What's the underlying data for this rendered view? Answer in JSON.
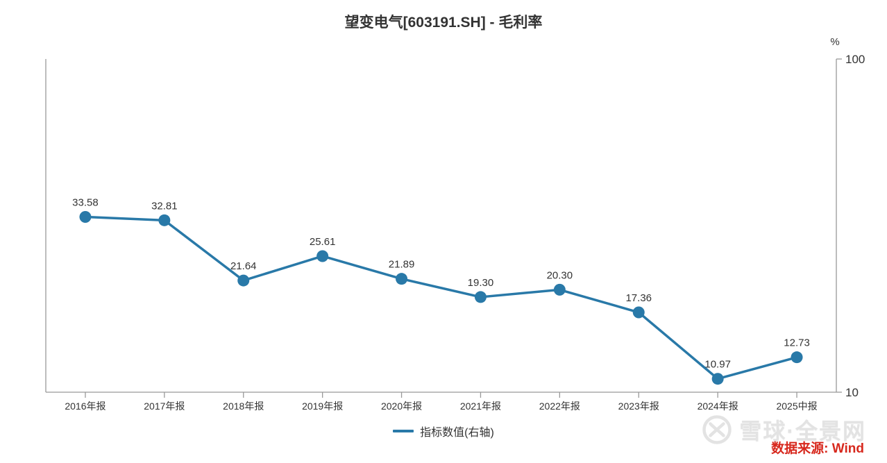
{
  "chart_data": {
    "type": "line",
    "title": "望变电气[603191.SH] - 毛利率",
    "categories": [
      "2016年报",
      "2017年报",
      "2018年报",
      "2019年报",
      "2020年报",
      "2021年报",
      "2022年报",
      "2023年报",
      "2024年报",
      "2025中报"
    ],
    "series": [
      {
        "name": "指标数值(右轴)",
        "values": [
          33.58,
          32.81,
          21.64,
          25.61,
          21.89,
          19.3,
          20.3,
          17.36,
          10.97,
          12.73
        ],
        "point_labels": [
          "33.58",
          "32.81",
          "21.64",
          "25.61",
          "21.89",
          "19.30",
          "20.30",
          "17.36",
          "10.97",
          "12.73"
        ]
      }
    ],
    "xlabel": "",
    "ylabel": "%",
    "y_axis": {
      "side": "right",
      "scale": "log",
      "min": 10,
      "max": 100,
      "tick_labels": [
        "100",
        "10"
      ],
      "unit": "%"
    },
    "grid": false,
    "legend_position": "bottom"
  },
  "watermark": {
    "text": "雪球·全景网",
    "logo": "xueqiu-snowball-logo"
  },
  "source": {
    "text": "数据来源: Wind"
  },
  "colors": {
    "series": "#2979a8",
    "axis": "#999999",
    "text": "#333333",
    "watermark": "#e3e3e3",
    "source_red": "#d7281d"
  }
}
